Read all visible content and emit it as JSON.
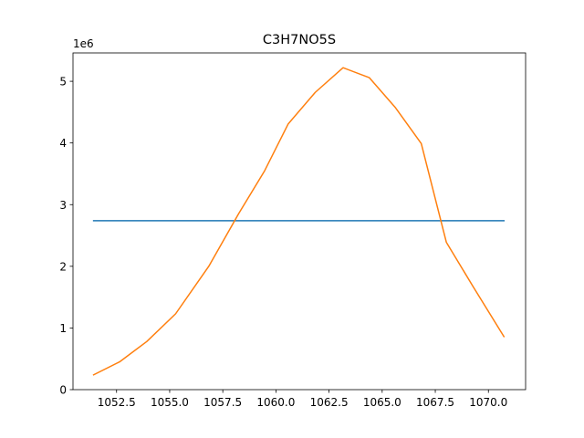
{
  "chart_data": {
    "type": "line",
    "title": "C3H7NO5S",
    "xlabel": "",
    "ylabel": "",
    "y_multiplier_label": "1e6",
    "xlim": [
      1050.45,
      1071.75
    ],
    "ylim": [
      0,
      5.46
    ],
    "x_ticks": [
      1052.5,
      1055.0,
      1057.5,
      1060.0,
      1062.5,
      1065.0,
      1067.5,
      1070.0
    ],
    "x_tick_labels": [
      "1052.5",
      "1055.0",
      "1057.5",
      "1060.0",
      "1062.5",
      "1065.0",
      "1067.5",
      "1070.0"
    ],
    "y_ticks": [
      0,
      1,
      2,
      3,
      4,
      5
    ],
    "y_tick_labels": [
      "0",
      "1",
      "2",
      "3",
      "4",
      "5"
    ],
    "grid": false,
    "series": [
      {
        "color": "#1f77b4",
        "x": [
          1051.42,
          1070.73
        ],
        "y": [
          2.74,
          2.74
        ]
      },
      {
        "color": "#ff7f0e",
        "x": [
          1051.42,
          1052.64,
          1053.92,
          1055.28,
          1056.84,
          1058.24,
          1059.47,
          1060.58,
          1061.85,
          1063.16,
          1064.39,
          1065.63,
          1066.84,
          1068.02,
          1069.28,
          1070.73
        ],
        "y": [
          0.24,
          0.45,
          0.78,
          1.23,
          2.0,
          2.85,
          3.55,
          4.31,
          4.82,
          5.22,
          5.06,
          4.57,
          3.99,
          2.39,
          1.67,
          0.86
        ]
      }
    ]
  }
}
